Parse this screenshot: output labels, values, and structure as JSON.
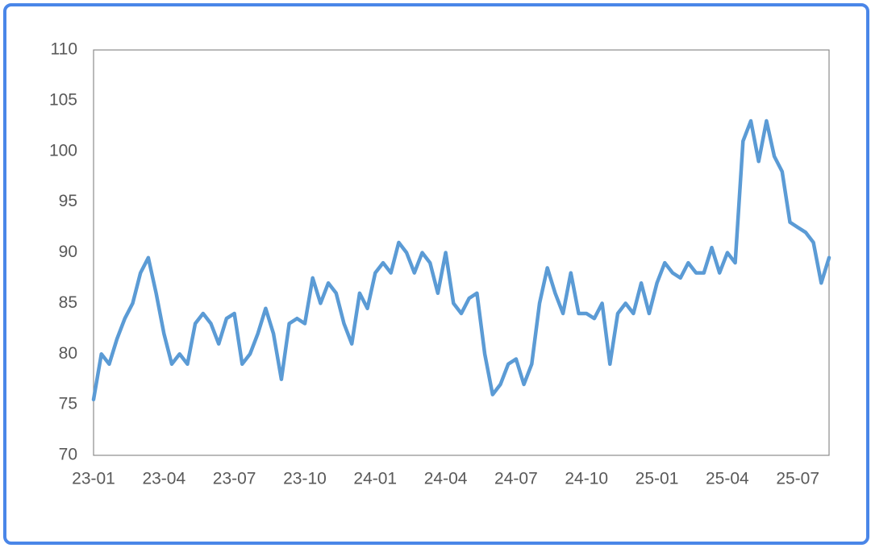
{
  "chart_data": {
    "type": "line",
    "categories": [
      "23-01",
      null,
      null,
      null,
      null,
      null,
      null,
      null,
      null,
      "23-04",
      null,
      null,
      null,
      null,
      null,
      null,
      null,
      null,
      "23-07",
      null,
      null,
      null,
      null,
      null,
      null,
      null,
      null,
      "23-10",
      null,
      null,
      null,
      null,
      null,
      null,
      null,
      null,
      "24-01",
      null,
      null,
      null,
      null,
      null,
      null,
      null,
      null,
      "24-04",
      null,
      null,
      null,
      null,
      null,
      null,
      null,
      null,
      "24-07",
      null,
      null,
      null,
      null,
      null,
      null,
      null,
      null,
      "24-10",
      null,
      null,
      null,
      null,
      null,
      null,
      null,
      null,
      "25-01",
      null,
      null,
      null,
      null,
      null,
      null,
      null,
      null,
      "25-04",
      null,
      null,
      null,
      null,
      null,
      null,
      null,
      null,
      "25-07",
      null,
      null,
      null,
      null
    ],
    "series": [
      {
        "color": "#5b9bd5",
        "values": [
          75.5,
          80,
          79,
          81.5,
          83.5,
          85,
          88,
          89.5,
          86,
          82,
          79,
          80,
          79,
          83,
          84,
          83,
          81,
          83.5,
          84,
          79,
          80,
          82,
          84.5,
          82,
          77.5,
          83,
          83.5,
          83,
          87.5,
          85,
          87,
          86,
          83,
          81,
          86,
          84.5,
          88,
          89,
          88,
          91,
          90,
          88,
          90,
          89,
          86,
          90,
          85,
          84,
          85.5,
          86,
          80,
          76,
          77,
          79,
          79.5,
          77,
          79,
          85,
          88.5,
          86,
          84,
          88,
          84,
          84,
          83.5,
          85,
          79,
          84,
          85,
          84,
          87,
          84,
          87,
          89,
          88,
          87.5,
          89,
          88,
          88,
          90.5,
          88,
          90,
          89,
          101,
          103,
          99,
          103,
          99.5,
          98,
          93,
          92.5,
          92,
          91,
          87,
          89.5
        ]
      }
    ],
    "ylim": [
      70,
      110
    ],
    "yticks": [
      70,
      75,
      80,
      85,
      90,
      95,
      100,
      105,
      110
    ],
    "grid": false
  }
}
